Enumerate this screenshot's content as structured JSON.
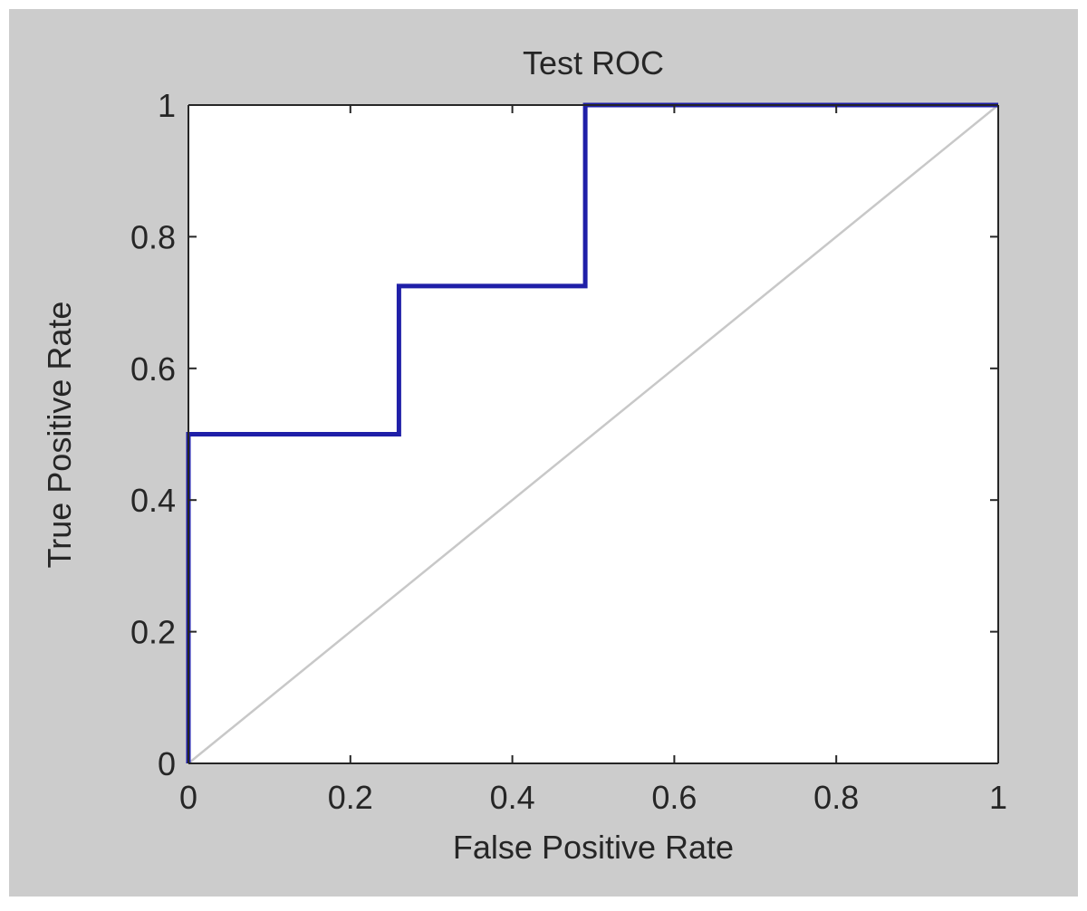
{
  "chart_data": {
    "type": "line",
    "title": "Test ROC",
    "xlabel": "False Positive Rate",
    "ylabel": "True Positive Rate",
    "xlim": [
      0,
      1
    ],
    "ylim": [
      0,
      1
    ],
    "x_ticks": [
      "0",
      "0.2",
      "0.4",
      "0.6",
      "0.8",
      "1"
    ],
    "y_ticks": [
      "0",
      "0.2",
      "0.4",
      "0.6",
      "0.8",
      "1"
    ],
    "grid": false,
    "legend": "none",
    "series": [
      {
        "color": "#1f1fa8",
        "style": "step",
        "x": [
          0,
          0,
          0.26,
          0.26,
          0.49,
          0.49,
          1
        ],
        "y": [
          0,
          0.5,
          0.5,
          0.725,
          0.725,
          1,
          1
        ]
      },
      {
        "color": "#c8c8c8",
        "style": "diagonal reference",
        "x": [
          0,
          1
        ],
        "y": [
          0,
          1
        ]
      }
    ],
    "colors": {
      "figure_background": "#cccccc",
      "plot_background": "#ffffff",
      "axes": "#262626"
    }
  }
}
